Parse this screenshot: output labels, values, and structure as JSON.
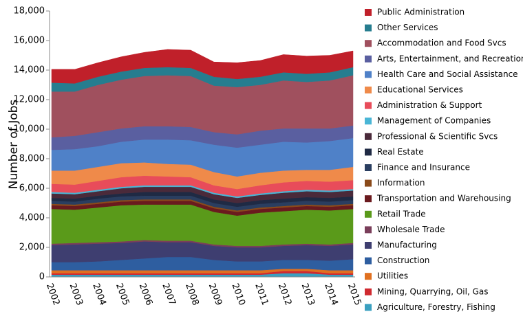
{
  "chart_data": {
    "type": "stacked-area",
    "y_label": "Number of Jobs",
    "categories": [
      "2002",
      "2003",
      "2004",
      "2005",
      "2006",
      "2007",
      "2008",
      "2009",
      "2010",
      "2011",
      "2012",
      "2013",
      "2014",
      "2015"
    ],
    "ylim": [
      0,
      18000
    ],
    "yticks": [
      0,
      {
        "value": 2000,
        "label": "2,000"
      },
      {
        "value": 4000,
        "label": "4,000"
      },
      {
        "value": 6000,
        "label": "6,000"
      },
      {
        "value": 8000,
        "label": "8,000"
      },
      {
        "value": 10000,
        "label": "10,000"
      },
      {
        "value": 12000,
        "label": "12,000"
      },
      {
        "value": 14000,
        "label": "14,000"
      },
      {
        "value": 16000,
        "label": "16,000"
      },
      {
        "value": 18000,
        "label": "18,000"
      }
    ],
    "grid": false,
    "legend": "right",
    "series": [
      {
        "name": "Agriculture, Forestry, Fishing",
        "color": "#3aa0c0",
        "values": [
          150,
          150,
          150,
          150,
          150,
          150,
          150,
          150,
          150,
          150,
          250,
          250,
          150,
          150
        ]
      },
      {
        "name": "Mining, Quarrying, Oil, Gas",
        "color": "#d02a30",
        "values": [
          100,
          100,
          100,
          100,
          100,
          100,
          100,
          100,
          100,
          100,
          150,
          150,
          100,
          100
        ]
      },
      {
        "name": "Utilities",
        "color": "#e07020",
        "values": [
          200,
          200,
          200,
          200,
          200,
          200,
          200,
          200,
          200,
          200,
          150,
          150,
          200,
          200
        ]
      },
      {
        "name": "Construction",
        "color": "#2e5ea0",
        "values": [
          550,
          550,
          600,
          700,
          800,
          900,
          900,
          700,
          600,
          600,
          600,
          600,
          650,
          750
        ]
      },
      {
        "name": "Manufacturing",
        "color": "#3e3e70",
        "values": [
          1150,
          1200,
          1200,
          1150,
          1150,
          1000,
          1000,
          950,
          950,
          950,
          950,
          1000,
          1000,
          1000
        ]
      },
      {
        "name": "Wholesale Trade",
        "color": "#7a3e5a",
        "values": [
          100,
          100,
          100,
          100,
          100,
          100,
          100,
          100,
          100,
          100,
          100,
          100,
          100,
          100
        ]
      },
      {
        "name": "Retail Trade",
        "color": "#5a9a1a",
        "values": [
          2350,
          2250,
          2350,
          2450,
          2400,
          2450,
          2450,
          2200,
          2050,
          2250,
          2250,
          2300,
          2300,
          2300
        ]
      },
      {
        "name": "Transportation and Warehousing",
        "color": "#6a1a1e",
        "values": [
          250,
          250,
          250,
          250,
          250,
          250,
          250,
          250,
          250,
          250,
          250,
          250,
          250,
          250
        ]
      },
      {
        "name": "Information",
        "color": "#8a4a1a",
        "values": [
          100,
          100,
          100,
          100,
          100,
          100,
          100,
          100,
          100,
          100,
          100,
          100,
          100,
          100
        ]
      },
      {
        "name": "Finance and Insurance",
        "color": "#2a3e60",
        "values": [
          200,
          200,
          250,
          250,
          250,
          250,
          250,
          250,
          250,
          250,
          250,
          250,
          250,
          250
        ]
      },
      {
        "name": "Real Estate",
        "color": "#1f2a44",
        "values": [
          200,
          200,
          200,
          200,
          250,
          250,
          250,
          250,
          250,
          250,
          250,
          250,
          250,
          250
        ]
      },
      {
        "name": "Professional & Scientific Svcs",
        "color": "#4a2a3a",
        "values": [
          300,
          300,
          300,
          350,
          350,
          350,
          350,
          350,
          350,
          350,
          400,
          400,
          400,
          400
        ]
      },
      {
        "name": "Management of Companies",
        "color": "#4ab6d6",
        "values": [
          100,
          100,
          100,
          100,
          100,
          100,
          100,
          100,
          100,
          100,
          100,
          100,
          100,
          100
        ]
      },
      {
        "name": "Administration & Support",
        "color": "#e84c5a",
        "values": [
          550,
          550,
          600,
          650,
          650,
          600,
          550,
          500,
          500,
          550,
          600,
          600,
          600,
          600
        ]
      },
      {
        "name": "Educational Services",
        "color": "#ef8a4a",
        "values": [
          900,
          950,
          950,
          950,
          900,
          850,
          850,
          900,
          850,
          850,
          800,
          750,
          800,
          900
        ]
      },
      {
        "name": "Health Care and Social Assistance",
        "color": "#4f81c8",
        "values": [
          1400,
          1450,
          1400,
          1450,
          1550,
          1650,
          1650,
          1850,
          1950,
          1900,
          1950,
          1850,
          1950,
          1950
        ]
      },
      {
        "name": "Arts, Entertainment, and Recreation",
        "color": "#5a5fa0",
        "values": [
          850,
          900,
          950,
          900,
          900,
          900,
          900,
          850,
          900,
          950,
          900,
          950,
          850,
          850
        ]
      },
      {
        "name": "Accommodation and Food Svcs",
        "color": "#a0505e",
        "values": [
          3100,
          3000,
          3200,
          3300,
          3400,
          3450,
          3450,
          3150,
          3200,
          3100,
          3250,
          3150,
          3250,
          3400
        ]
      },
      {
        "name": "Other Services",
        "color": "#267d8f",
        "values": [
          600,
          550,
          550,
          550,
          550,
          550,
          550,
          600,
          550,
          550,
          550,
          550,
          550,
          550
        ]
      },
      {
        "name": "Public Administration",
        "color": "#c0202a",
        "values": [
          900,
          950,
          950,
          1000,
          1050,
          1200,
          1200,
          1000,
          1100,
          1100,
          1200,
          1200,
          1150,
          1100
        ]
      }
    ]
  }
}
